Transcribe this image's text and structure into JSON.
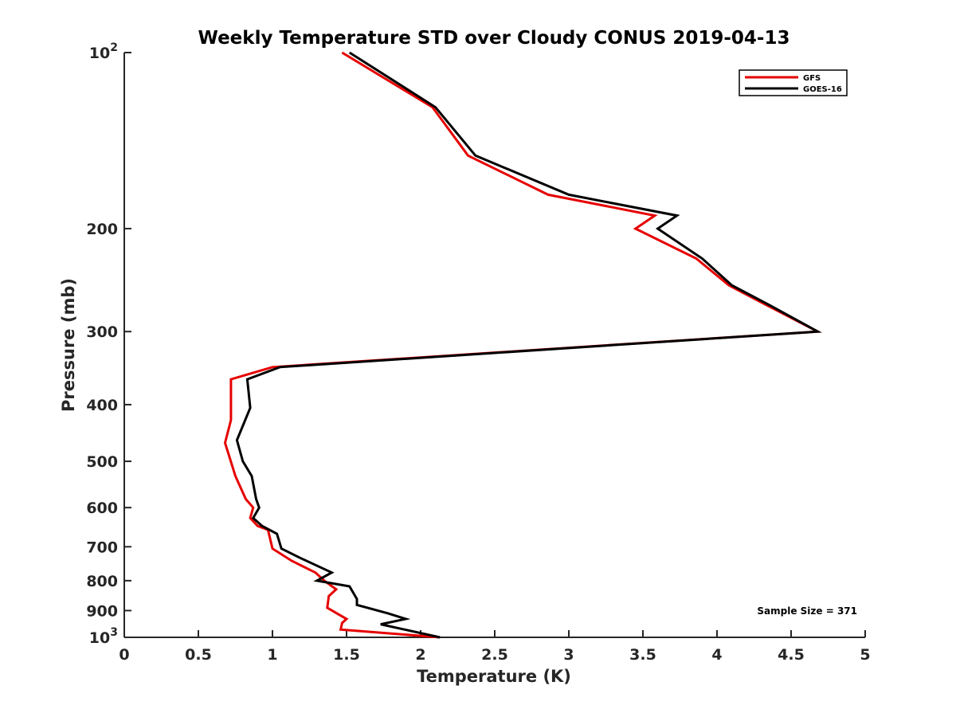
{
  "chart_data": {
    "type": "line",
    "title": "Weekly Temperature STD over Cloudy CONUS 2019-04-13",
    "xlabel": "Temperature (K)",
    "ylabel": "Pressure (mb)",
    "xlim": [
      0,
      5
    ],
    "ylim": [
      100,
      1000
    ],
    "y_scale": "log",
    "y_reversed": true,
    "grid": false,
    "x_ticks": [
      "0",
      "0.5",
      "1",
      "1.5",
      "2",
      "2.5",
      "3",
      "3.5",
      "4",
      "4.5",
      "5"
    ],
    "y_ticks": [
      {
        "value": 100,
        "base": "10",
        "exp": "2"
      },
      {
        "value": 200,
        "label": "200"
      },
      {
        "value": 300,
        "label": "300"
      },
      {
        "value": 400,
        "label": "400"
      },
      {
        "value": 500,
        "label": "500"
      },
      {
        "value": 600,
        "label": "600"
      },
      {
        "value": 700,
        "label": "700"
      },
      {
        "value": 800,
        "label": "800"
      },
      {
        "value": 900,
        "label": "900"
      },
      {
        "value": 1000,
        "base": "10",
        "exp": "3"
      }
    ],
    "legend_position": "top-right",
    "annotation": "Sample Size = 371",
    "series": [
      {
        "name": "GFS",
        "color": "#e60000",
        "points": [
          [
            1.47,
            100
          ],
          [
            2.08,
            124
          ],
          [
            2.32,
            150
          ],
          [
            2.86,
            175
          ],
          [
            3.58,
            190
          ],
          [
            3.45,
            200
          ],
          [
            3.86,
            225
          ],
          [
            4.08,
            250
          ],
          [
            4.33,
            270
          ],
          [
            4.68,
            300
          ],
          [
            1.0,
            345
          ],
          [
            0.72,
            362
          ],
          [
            0.72,
            425
          ],
          [
            0.68,
            465
          ],
          [
            0.75,
            530
          ],
          [
            0.82,
            580
          ],
          [
            0.87,
            600
          ],
          [
            0.85,
            625
          ],
          [
            0.9,
            645
          ],
          [
            0.97,
            655
          ],
          [
            1.0,
            705
          ],
          [
            1.13,
            740
          ],
          [
            1.29,
            775
          ],
          [
            1.35,
            800
          ],
          [
            1.43,
            828
          ],
          [
            1.38,
            850
          ],
          [
            1.37,
            890
          ],
          [
            1.46,
            918
          ],
          [
            1.5,
            930
          ],
          [
            1.47,
            945
          ],
          [
            1.46,
            970
          ],
          [
            2.13,
            1000
          ]
        ]
      },
      {
        "name": "GOES-16",
        "color": "#000000",
        "points": [
          [
            1.52,
            100
          ],
          [
            2.1,
            124
          ],
          [
            2.37,
            150
          ],
          [
            3.0,
            175
          ],
          [
            3.73,
            190
          ],
          [
            3.6,
            200
          ],
          [
            3.9,
            225
          ],
          [
            4.1,
            250
          ],
          [
            4.35,
            270
          ],
          [
            4.68,
            300
          ],
          [
            1.05,
            345
          ],
          [
            0.83,
            362
          ],
          [
            0.85,
            405
          ],
          [
            0.76,
            460
          ],
          [
            0.8,
            500
          ],
          [
            0.86,
            530
          ],
          [
            0.89,
            580
          ],
          [
            0.91,
            600
          ],
          [
            0.87,
            625
          ],
          [
            0.93,
            645
          ],
          [
            1.03,
            665
          ],
          [
            1.06,
            705
          ],
          [
            1.18,
            730
          ],
          [
            1.4,
            775
          ],
          [
            1.3,
            800
          ],
          [
            1.52,
            818
          ],
          [
            1.57,
            860
          ],
          [
            1.57,
            880
          ],
          [
            1.78,
            910
          ],
          [
            1.9,
            930
          ],
          [
            1.73,
            950
          ],
          [
            2.13,
            1000
          ]
        ]
      }
    ]
  }
}
